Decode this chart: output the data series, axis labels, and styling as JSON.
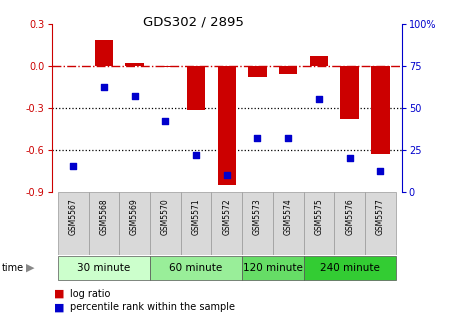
{
  "title": "GDS302 / 2895",
  "samples": [
    "GSM5567",
    "GSM5568",
    "GSM5569",
    "GSM5570",
    "GSM5571",
    "GSM5572",
    "GSM5573",
    "GSM5574",
    "GSM5575",
    "GSM5576",
    "GSM5577"
  ],
  "log_ratio": [
    0.0,
    0.18,
    0.02,
    -0.01,
    -0.32,
    -0.85,
    -0.08,
    -0.06,
    0.07,
    -0.38,
    -0.63
  ],
  "percentile": [
    15,
    62,
    57,
    42,
    22,
    10,
    32,
    32,
    55,
    20,
    12
  ],
  "bar_color": "#cc0000",
  "dot_color": "#0000cc",
  "ylim_left": [
    -0.9,
    0.3
  ],
  "ylim_right": [
    0,
    100
  ],
  "yticks_left": [
    0.3,
    0.0,
    -0.3,
    -0.6,
    -0.9
  ],
  "yticks_right": [
    100,
    75,
    50,
    25,
    0
  ],
  "groups": [
    {
      "label": "30 minute",
      "start": 0,
      "end": 2,
      "color": "#ccffcc"
    },
    {
      "label": "60 minute",
      "start": 3,
      "end": 5,
      "color": "#99ee99"
    },
    {
      "label": "120 minute",
      "start": 6,
      "end": 7,
      "color": "#66dd66"
    },
    {
      "label": "240 minute",
      "start": 8,
      "end": 10,
      "color": "#33cc33"
    }
  ],
  "hline_color": "#cc0000",
  "dotted_color": "#000000",
  "bar_width": 0.6,
  "background_color": "#ffffff"
}
